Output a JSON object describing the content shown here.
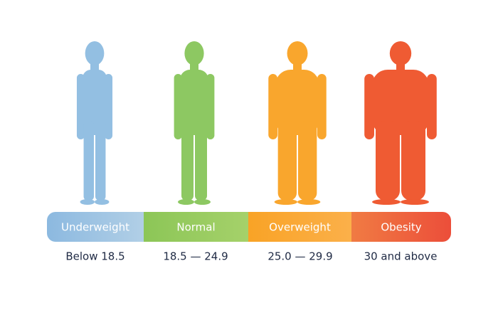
{
  "categories": [
    {
      "label": "Underweight",
      "range": "Below 18.5"
    },
    {
      "label": "Normal",
      "range": "18.5 — 24.9"
    },
    {
      "label": "Overweight",
      "range": "25.0 — 29.9"
    },
    {
      "label": "Obesity",
      "range": "30 and above"
    }
  ]
}
